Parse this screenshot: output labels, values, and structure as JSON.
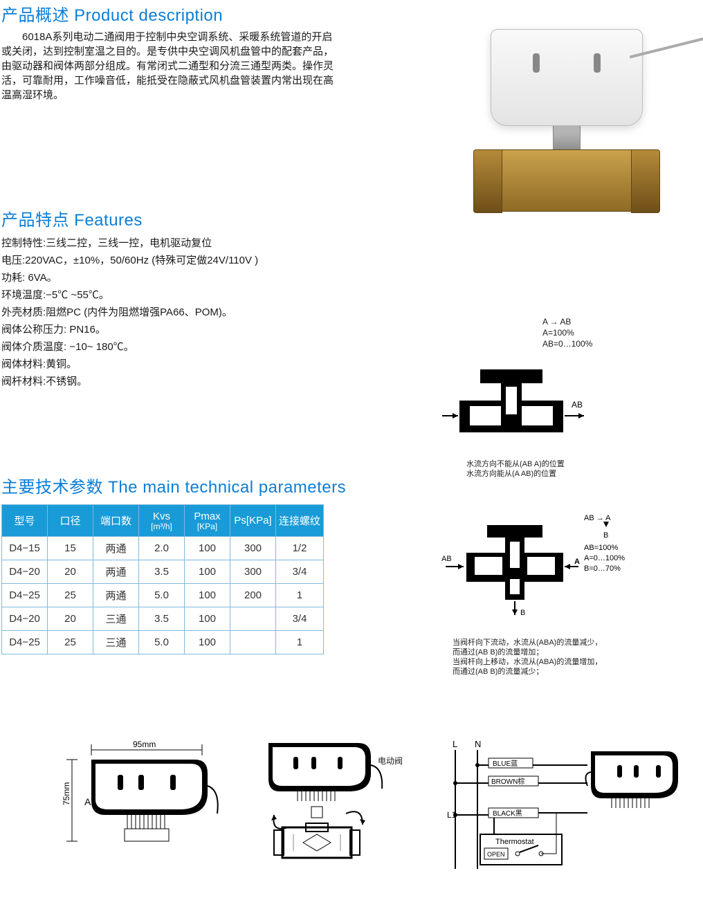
{
  "sections": {
    "description": {
      "heading": "产品概述 Product description",
      "body": "6018A系列电动二通阀用于控制中央空调系统、采暖系统管道的开启或关闭，达到控制室温之目的。是专供中央空调风机盘管中的配套产品，由驱动器和阀体两部分组成。有常闭式二通型和分流三通型两类。操作灵活，可靠耐用，工作噪音低，能抵受在隐蔽式风机盘管装置内常出现在高温高湿环境。"
    },
    "features": {
      "heading": "产品特点 Features",
      "items": [
        "控制特性:三线二控，三线一控，电机驱动复位",
        "电压:220VAC，±10%，50/60Hz (特殊可定做24V/110V )",
        "功耗: 6VA。",
        "环境温度:−5℃ ~55℃。",
        "外壳材质:阻燃PC (内件为阻燃增强PA66、POM)。",
        "阀体公称压力: PN16。",
        "阀体介质温度: −10~ 180℃。",
        "阀体材料:黄铜。",
        "阀杆材料:不锈钢。"
      ]
    },
    "tech": {
      "heading": "主要技术参数 The main technical parameters"
    }
  },
  "spec_table": {
    "header_color": "#199bd7",
    "border_color": "#7fb9dd",
    "columns": [
      {
        "label": "型号"
      },
      {
        "label": "口径"
      },
      {
        "label": "端口数"
      },
      {
        "label": "Kvs",
        "sub": "[m³/h]"
      },
      {
        "label": "Pmax",
        "sub": "[KPa]"
      },
      {
        "label": "Ps[KPa]"
      },
      {
        "label": "连接螺纹"
      }
    ],
    "rows": [
      [
        "D4−15",
        "15",
        "两通",
        "2.0",
        "100",
        "300",
        "1/2"
      ],
      [
        "D4−20",
        "20",
        "两通",
        "3.5",
        "100",
        "300",
        "3/4"
      ],
      [
        "D4−25",
        "25",
        "两通",
        "5.0",
        "100",
        "200",
        "1"
      ],
      [
        "D4−20",
        "20",
        "三通",
        "3.5",
        "100",
        "",
        "3/4"
      ],
      [
        "D4−25",
        "25",
        "三通",
        "5.0",
        "100",
        "",
        "1"
      ]
    ]
  },
  "diagram1": {
    "labels": [
      "A  →  AB",
      "A=100%",
      "AB=0…100%"
    ],
    "ab": "AB",
    "caption1": "水流方向不能从(AB A)的位置",
    "caption2": "水流方向能从(A AB)的位置"
  },
  "diagram2": {
    "top": "AB → A",
    "mid": "B",
    "right": [
      "AB=100%",
      "A=0…100%",
      "B=0…70%"
    ],
    "left": "AB",
    "A": "A",
    "Bdown": "B",
    "caption1": "当阀杆向下流动，水流从(ABA)的流量减少，",
    "caption2": "而通过(AB B)的流量增加；",
    "caption3": "当阀杆向上移动，水流从(ABA)的流量增加，",
    "caption4": "而通过(AB B)的流量减少；"
  },
  "bottom": {
    "dimA": "A",
    "dimW": "95mm",
    "dimH": "75mm",
    "assembly_label": "电动阀",
    "wiring": {
      "L": "L",
      "N": "N",
      "blue": "BLUE蓝",
      "brown": "BROWN棕",
      "L1": "L1",
      "black": "BLACK黑",
      "thermostat": "Thermostat",
      "open": "OPEN"
    }
  },
  "colors": {
    "heading": "#0b7ed6",
    "brass_light": "#caa24d",
    "brass_dark": "#8e6a24",
    "actuator": "#e4e4e4"
  }
}
